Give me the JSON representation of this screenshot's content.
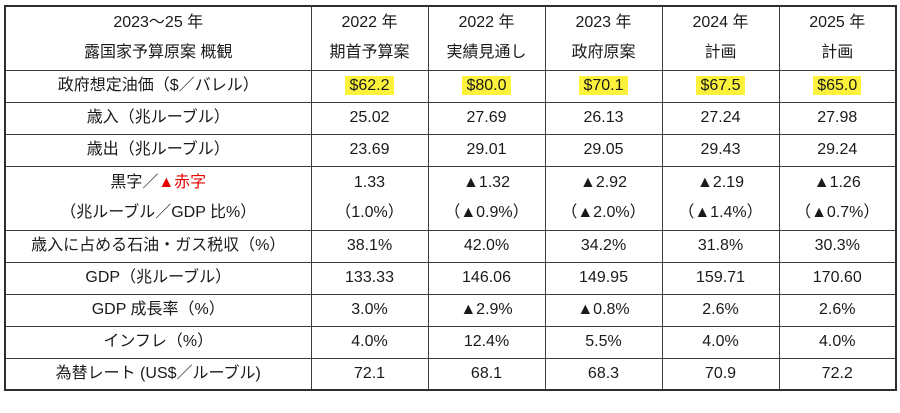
{
  "table_title": "2023～25年露国家予算原案概観",
  "header": {
    "title_line1": "2023～25 年",
    "title_line2": "露国家予算原案 概観",
    "columns": [
      {
        "line1": "2022 年",
        "line2": "期首予算案"
      },
      {
        "line1": "2022 年",
        "line2": "実績見通し"
      },
      {
        "line1": "2023 年",
        "line2": "政府原案"
      },
      {
        "line1": "2024 年",
        "line2": "計画"
      },
      {
        "line1": "2025 年",
        "line2": "計画"
      }
    ]
  },
  "rows": {
    "oil_price": {
      "label": "政府想定油価（$／バレル）",
      "values": [
        "$62.2",
        "$80.0",
        "$70.1",
        "$67.5",
        "$65.0"
      ]
    },
    "revenue": {
      "label": "歳入（兆ルーブル）",
      "values": [
        "25.02",
        "27.69",
        "26.13",
        "27.24",
        "27.98"
      ]
    },
    "expenditure": {
      "label": "歳出（兆ルーブル）",
      "values": [
        "23.69",
        "29.01",
        "29.05",
        "29.43",
        "29.24"
      ]
    },
    "balance": {
      "label_black": "黒字／",
      "label_red": "▲赤字",
      "label_line2": "（兆ルーブル／GDP 比%）",
      "values": [
        "1.33",
        "▲1.32",
        "▲2.92",
        "▲2.19",
        "▲1.26"
      ],
      "values_pct": [
        "（1.0%）",
        "（▲0.9%）",
        "（▲2.0%）",
        "（▲1.4%）",
        "（▲0.7%）"
      ]
    },
    "oil_gas_share": {
      "label": "歳入に占める石油・ガス税収（%）",
      "values": [
        "38.1%",
        "42.0%",
        "34.2%",
        "31.8%",
        "30.3%"
      ]
    },
    "gdp": {
      "label": "GDP（兆ルーブル）",
      "values": [
        "133.33",
        "146.06",
        "149.95",
        "159.71",
        "170.60"
      ]
    },
    "gdp_growth": {
      "label": "GDP 成長率（%）",
      "values": [
        "3.0%",
        "▲2.9%",
        "▲0.8%",
        "2.6%",
        "2.6%"
      ]
    },
    "inflation": {
      "label": "インフレ（%）",
      "values": [
        "4.0%",
        "12.4%",
        "5.5%",
        "4.0%",
        "4.0%"
      ]
    },
    "fx_rate": {
      "label": "為替レート (US$／ルーブル)",
      "values": [
        "72.1",
        "68.1",
        "68.3",
        "70.9",
        "72.2"
      ]
    }
  },
  "colors": {
    "highlight_yellow": "#fcf23b",
    "negative_red": "#e60000",
    "border": "#3b3b3b"
  }
}
